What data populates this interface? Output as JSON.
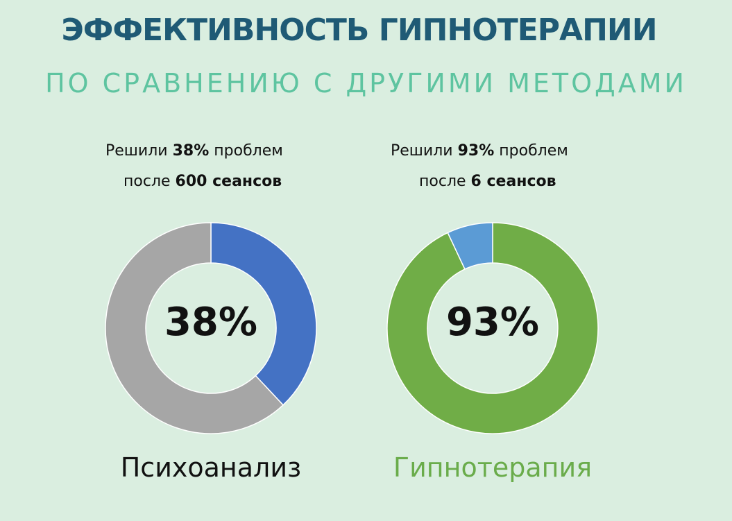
{
  "header": {
    "title": "ЭФФЕКТИВНОСТЬ ГИПНОТЕРАПИИ",
    "subtitle": "ПО СРАВНЕНИЮ С ДРУГИМИ МЕТОДАМИ"
  },
  "chart_data": [
    {
      "type": "pie",
      "variant": "donut",
      "name": "Психоанализ",
      "caption": {
        "l1_pre": "Решили ",
        "l1_bold": "38%",
        "l1_post": " проблем",
        "l2_pre": "после ",
        "l2_bold": "600 сеансов"
      },
      "center_label": "38%",
      "slices": [
        {
          "value": 38,
          "color": "#4472c4"
        },
        {
          "value": 62,
          "color": "#a6a6a6"
        }
      ],
      "label_color": "#111111"
    },
    {
      "type": "pie",
      "variant": "donut",
      "name": "Гипнотерапия",
      "caption": {
        "l1_pre": "Решили ",
        "l1_bold": "93%",
        "l1_post": " проблем",
        "l2_pre": "после ",
        "l2_bold": "6 сеансов"
      },
      "center_label": "93%",
      "slices": [
        {
          "value": 93,
          "color": "#70ad47"
        },
        {
          "value": 7,
          "color": "#5b9bd5"
        }
      ],
      "label_color": "#6aac4b"
    }
  ],
  "colors": {
    "background": "#daeee0",
    "title": "#1f5a75",
    "subtitle": "#5ec4a0"
  }
}
